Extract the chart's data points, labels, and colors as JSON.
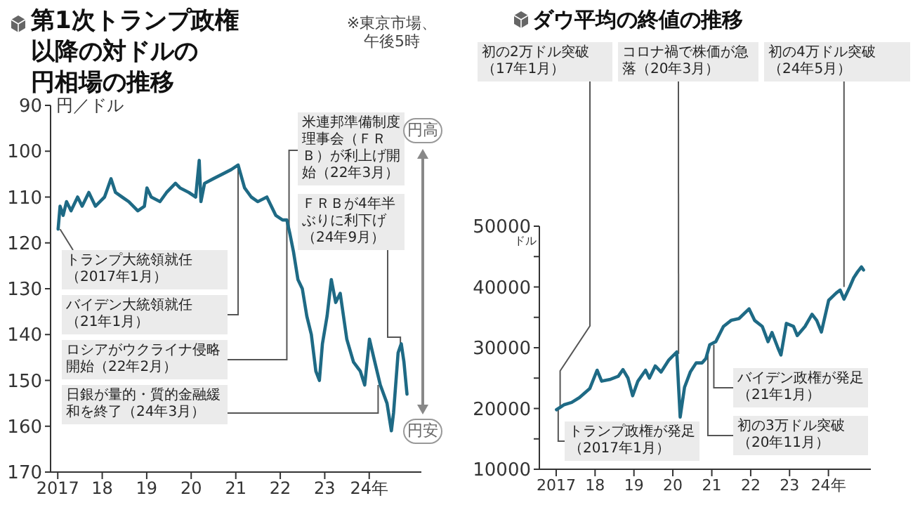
{
  "chart_data": [
    {
      "type": "line",
      "title": "第1次トランプ政権以降の対ドルの円相場の推移",
      "ylabel": "円／ドル",
      "x": [
        "2017-01-04",
        "2017-01-20",
        "2017-02-14",
        "2017-03-14",
        "2017-04-20",
        "2017-06-13",
        "2017-07-20",
        "2017-09-13",
        "2017-11-06",
        "2017-12-13",
        "2018-01-20",
        "2018-03-14",
        "2018-04-20",
        "2018-06-13",
        "2018-08-07",
        "2018-10-20",
        "2018-12-13",
        "2019-01-03",
        "2019-02-07",
        "2019-04-20",
        "2019-06-13",
        "2019-08-25",
        "2019-10-01",
        "2019-12-13",
        "2020-02-07",
        "2020-03-07",
        "2020-03-21",
        "2020-04-20",
        "2020-07-01",
        "2020-09-13",
        "2020-11-25",
        "2021-01-20",
        "2021-03-14",
        "2021-05-08",
        "2021-07-01",
        "2021-09-13",
        "2021-11-25",
        "2022-01-20",
        "2022-02-24",
        "2022-03-21",
        "2022-04-20",
        "2022-05-26",
        "2022-07-01",
        "2022-08-07",
        "2022-09-13",
        "2022-10-20",
        "2022-11-18",
        "2022-12-13",
        "2023-01-20",
        "2023-02-24",
        "2023-04-01",
        "2023-05-08",
        "2023-07-01",
        "2023-08-25",
        "2023-10-20",
        "2023-11-25",
        "2024-01-03",
        "2024-02-07",
        "2024-04-01",
        "2024-05-26",
        "2024-07-01",
        "2024-07-19",
        "2024-08-25",
        "2024-09-20",
        "2024-10-12",
        "2024-11-06"
      ],
      "series": [
        {
          "color": "#1e6a85",
          "values": [
            117,
            112,
            114,
            111,
            113,
            110,
            112,
            109,
            112,
            111,
            110,
            106,
            109,
            110,
            111,
            113,
            112,
            108,
            110,
            111,
            109,
            107,
            108,
            109,
            110,
            102,
            111,
            107,
            106,
            105,
            104,
            103,
            108,
            110,
            111,
            110,
            114,
            115,
            115,
            118,
            122,
            128,
            130,
            136,
            140,
            148,
            150,
            142,
            136,
            128,
            133,
            131,
            141,
            146,
            148,
            151,
            141,
            145,
            151,
            155,
            161,
            157,
            144,
            142,
            146,
            153
          ]
        }
      ],
      "xlim": [
        "2016-11-03",
        "2025-03-04"
      ],
      "xticks": [
        {
          "value": "2017-01-01",
          "label": "2017"
        },
        {
          "value": "2018-01-01",
          "label": "18"
        },
        {
          "value": "2019-01-01",
          "label": "19"
        },
        {
          "value": "2020-01-01",
          "label": "20"
        },
        {
          "value": "2021-01-01",
          "label": "21"
        },
        {
          "value": "2022-01-01",
          "label": "22"
        },
        {
          "value": "2023-01-01",
          "label": "23"
        },
        {
          "value": "2024-01-01",
          "label": "24年"
        }
      ],
      "ylim": [
        170,
        90
      ],
      "yticks": [
        90,
        100,
        110,
        120,
        130,
        140,
        150,
        160,
        170
      ],
      "annotations": [
        {
          "text": "トランプ大統領就任（2017年1月）",
          "x": "2017-01-20",
          "y": 117
        },
        {
          "text": "バイデン大統領就任（21年1月）",
          "x": "2021-01-20",
          "y": 103
        },
        {
          "text": "ロシアがウクライナ侵略開始（22年2月）",
          "x": "2022-02-24",
          "y": 115
        },
        {
          "text": "日銀が量的・質的金融緩和を終了（24年3月）",
          "x": "2024-03-14",
          "y": 151
        },
        {
          "text": "米連邦準備制度理事会（ＦＲＢ）が利上げ開始（22年3月）",
          "x": "2022-03-14",
          "y": 117
        },
        {
          "text": "ＦＲＢが4年半ぶりに利下げ（24年9月）",
          "x": "2024-09-13",
          "y": 142
        },
        "※東京市場、午後5時",
        "円高",
        "円安"
      ]
    },
    {
      "type": "line",
      "title": "ダウ平均の終値の推移",
      "ylabel": "ドル",
      "x": [
        "2017-01-04",
        "2017-03-14",
        "2017-05-26",
        "2017-08-07",
        "2017-11-13",
        "2018-01-20",
        "2018-03-04",
        "2018-05-26",
        "2018-08-07",
        "2018-09-20",
        "2018-11-06",
        "2018-12-20",
        "2019-02-07",
        "2019-04-20",
        "2019-05-26",
        "2019-07-20",
        "2019-09-13",
        "2019-11-25",
        "2020-02-07",
        "2020-03-10",
        "2020-04-20",
        "2020-06-13",
        "2020-08-07",
        "2020-10-01",
        "2020-11-06",
        "2020-12-13",
        "2021-02-07",
        "2021-04-20",
        "2021-07-01",
        "2021-09-13",
        "2021-12-17",
        "2022-02-07",
        "2022-04-20",
        "2022-06-13",
        "2022-07-20",
        "2022-09-13",
        "2022-10-12",
        "2022-12-02",
        "2023-02-07",
        "2023-03-14",
        "2023-05-26",
        "2023-07-31",
        "2023-09-13",
        "2023-10-27",
        "2024-01-03",
        "2024-03-14",
        "2024-04-20",
        "2024-05-26",
        "2024-07-19",
        "2024-08-25",
        "2024-10-01",
        "2024-11-06",
        "2024-11-25"
      ],
      "series": [
        {
          "color": "#1e6a85",
          "values": [
            19800,
            20600,
            21000,
            21800,
            23300,
            26300,
            24500,
            24800,
            25300,
            26400,
            25000,
            22100,
            24500,
            26300,
            25000,
            27000,
            26000,
            28000,
            29300,
            18600,
            23500,
            26000,
            27500,
            27500,
            28200,
            30500,
            31000,
            33500,
            34500,
            34800,
            36400,
            34500,
            33500,
            31000,
            32500,
            30000,
            28800,
            34000,
            33500,
            32000,
            33500,
            35500,
            34500,
            32600,
            37800,
            39000,
            39500,
            38000,
            40000,
            41500,
            42500,
            43300,
            42800
          ]
        }
      ],
      "xlim": [
        "2016-07-27",
        "2025-02-02"
      ],
      "xticks": [
        {
          "value": "2017-01-01",
          "label": "2017"
        },
        {
          "value": "2018-01-01",
          "label": "18"
        },
        {
          "value": "2019-01-01",
          "label": "19"
        },
        {
          "value": "2020-01-01",
          "label": "20"
        },
        {
          "value": "2021-01-01",
          "label": "21"
        },
        {
          "value": "2022-01-01",
          "label": "22"
        },
        {
          "value": "2023-01-01",
          "label": "23"
        },
        {
          "value": "2024-01-01",
          "label": "24年"
        }
      ],
      "ylim": [
        10000,
        50000
      ],
      "yticks": [
        10000,
        {
          "value": 15000,
          "label": null
        },
        20000,
        {
          "value": 25000,
          "label": null
        },
        30000,
        {
          "value": 35000,
          "label": null
        },
        40000,
        {
          "value": 45000,
          "label": null
        },
        50000
      ],
      "annotations": [
        {
          "text": "トランプ政権が発足（2017年1月）",
          "x": "2017-01-20",
          "y": 19900
        },
        {
          "text": "初の2万ドル突破（17年1月）",
          "x": "2017-02-07",
          "y": 20200
        },
        {
          "text": "コロナ禍で株価が急落（20年3月）",
          "x": "2020-02-24",
          "y": 29000
        },
        {
          "text": "初の3万ドル突破（20年11月）",
          "x": "2020-11-25",
          "y": 30000
        },
        {
          "text": "バイデン政権が発足（21年1月）",
          "x": "2021-01-20",
          "y": 30500
        },
        {
          "text": "初の4万ドル突破（24年5月）",
          "x": "2024-05-26",
          "y": 40000
        }
      ]
    }
  ]
}
